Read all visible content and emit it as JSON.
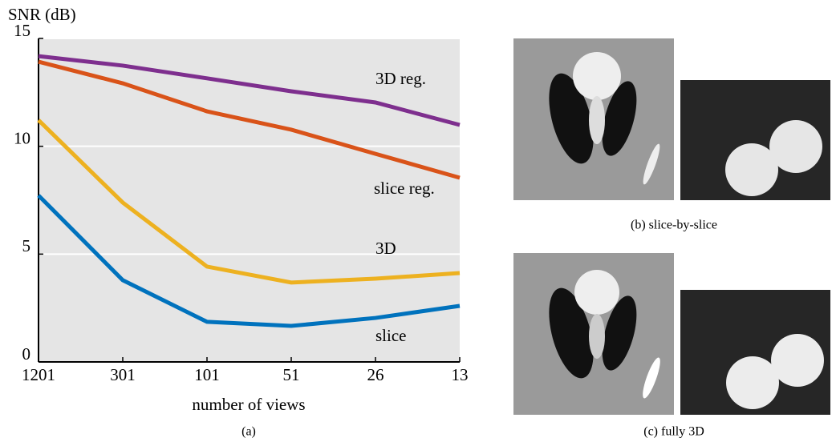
{
  "chart_data": {
    "type": "line",
    "ylabel": "SNR (dB)",
    "xlabel": "number of views",
    "caption": "(a)",
    "categories": [
      "1201",
      "301",
      "101",
      "51",
      "26",
      "13"
    ],
    "series": [
      {
        "name": "3D reg.",
        "color": "#7e2f8e",
        "values": [
          14.18,
          13.74,
          13.15,
          12.55,
          12.03,
          10.99
        ]
      },
      {
        "name": "slice reg.",
        "color": "#d95319",
        "values": [
          13.92,
          12.92,
          11.62,
          10.77,
          9.65,
          8.54
        ]
      },
      {
        "name": "3D",
        "color": "#edb120",
        "values": [
          11.21,
          7.39,
          4.42,
          3.68,
          3.86,
          4.12
        ]
      },
      {
        "name": "slice",
        "color": "#0072bd",
        "values": [
          7.72,
          3.79,
          1.86,
          1.67,
          2.04,
          2.6
        ]
      }
    ],
    "ylim": [
      0,
      15
    ],
    "yticks": [
      0,
      5,
      10,
      15
    ],
    "grid": true
  },
  "images": [
    {
      "caption": "(b) slice-by-slice"
    },
    {
      "caption": "(c) fully 3D"
    }
  ]
}
